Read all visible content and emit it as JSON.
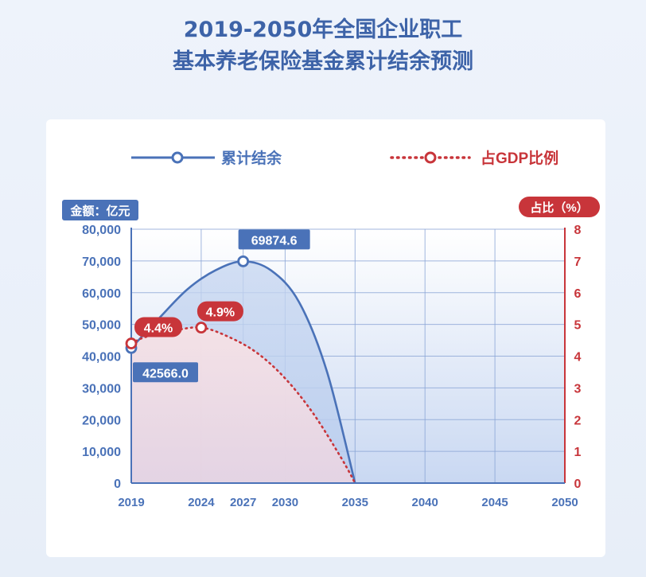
{
  "title_line1": "2019-2050年全国企业职工",
  "title_line2": "基本养老保险基金累计结余预测",
  "chart_data": {
    "type": "line",
    "legend": {
      "placement": "top",
      "items": [
        "累计结余",
        "占GDP比例"
      ]
    },
    "y_left_label": "金额：亿元",
    "y_right_label": "占比（%）",
    "y_left_range": [
      0,
      80000
    ],
    "y_right_range": [
      0,
      8
    ],
    "x_range": [
      2019,
      2050
    ],
    "y_left_ticks": [
      "80,000",
      "70,000",
      "60,000",
      "50,000",
      "40,000",
      "30,000",
      "20,000",
      "10,000",
      "0"
    ],
    "y_right_ticks": [
      "8",
      "7",
      "6",
      "5",
      "4",
      "3",
      "2",
      "1",
      "0"
    ],
    "x_ticks": [
      "2019",
      "2024",
      "2027",
      "2030",
      "2035",
      "2040",
      "2045",
      "2050"
    ],
    "grid": true,
    "series": [
      {
        "name": "累计结余",
        "axis": "left",
        "color": "#4a72b8",
        "points": [
          [
            2019,
            42566.0
          ],
          [
            2021,
            52000
          ],
          [
            2023,
            61000
          ],
          [
            2025,
            67000
          ],
          [
            2027,
            69874.6
          ],
          [
            2029,
            67000
          ],
          [
            2031,
            57000
          ],
          [
            2033,
            35000
          ],
          [
            2035,
            0
          ]
        ]
      },
      {
        "name": "占GDP比例",
        "axis": "right",
        "color": "#c8353a",
        "points": [
          [
            2019,
            4.4
          ],
          [
            2020,
            4.6
          ],
          [
            2022,
            4.8
          ],
          [
            2024,
            4.9
          ],
          [
            2026,
            4.6
          ],
          [
            2028,
            4.1
          ],
          [
            2030,
            3.3
          ],
          [
            2032,
            2.2
          ],
          [
            2034,
            0.8
          ],
          [
            2035,
            0
          ]
        ]
      }
    ],
    "annotations": [
      {
        "series": 0,
        "x": 2019,
        "label": "42566.0"
      },
      {
        "series": 0,
        "x": 2027,
        "label": "69874.6"
      },
      {
        "series": 1,
        "x": 2019,
        "label": "4.4%"
      },
      {
        "series": 1,
        "x": 2024,
        "label": "4.9%"
      }
    ]
  }
}
